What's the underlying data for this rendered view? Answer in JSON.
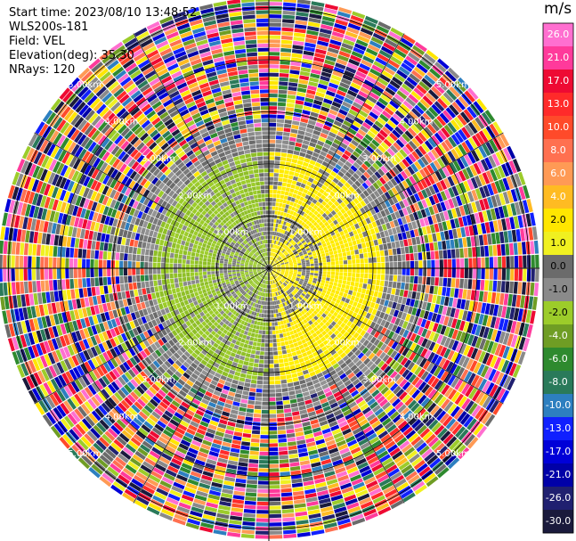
{
  "header": {
    "start_time": "Start time: 2023/08/10 13:48:52",
    "instrument": "WLS200s-181",
    "field": "Field: VEL",
    "elevation": "Elevation(deg): 35.30",
    "nrays": "NRays: 120"
  },
  "colorbar": {
    "unit": "m/s",
    "ticks": [
      "26.0",
      "21.0",
      "17.0",
      "13.0",
      "10.0",
      "8.0",
      "6.0",
      "4.0",
      "2.0",
      "1.0",
      "0.0",
      "-1.0",
      "-2.0",
      "-4.0",
      "-6.0",
      "-8.0",
      "-10.0",
      "-13.0",
      "-17.0",
      "-21.0",
      "-26.0",
      "-30.0"
    ],
    "colors": [
      "#ff6fd0",
      "#ff3a9b",
      "#ee0a33",
      "#ff2a2a",
      "#ff4a2a",
      "#ff7050",
      "#ff9a55",
      "#ffbb22",
      "#ffe600",
      "#f0f020",
      "#6b6b6b",
      "#8a8a8a",
      "#9ccc2a",
      "#6f9d24",
      "#2e8a2e",
      "#2a7a5a",
      "#2d7fc0",
      "#1020ff",
      "#0000d8",
      "#0000a8",
      "#202070",
      "#1a1a3c"
    ]
  },
  "chart_data": {
    "type": "ppi",
    "field": "VEL",
    "nrays": 120,
    "range_ring_labels": [
      "1.00km",
      "2.00km",
      "3.00km",
      "4.00km",
      "5.00km"
    ],
    "range_rings_km": [
      1,
      2,
      3,
      4,
      5
    ],
    "rings_are_labeled": true,
    "spoke_count": 12,
    "max_range_km": 5.2,
    "value_range": [
      -30,
      26
    ],
    "inner_pattern": "positive velocity (yellow, 0 to 2 m/s) on the east half, negative velocity (green, -1 to -4 m/s) on the west half, grey near-zero band between them"
  }
}
